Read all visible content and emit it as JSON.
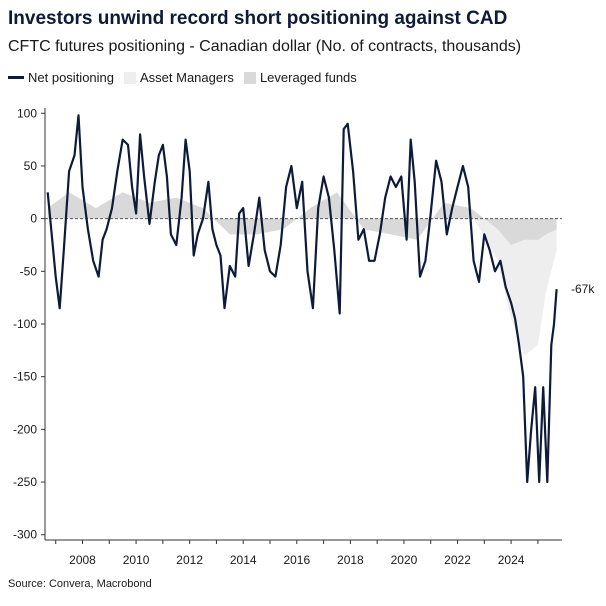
{
  "header": {
    "title": "Investors unwind record short positioning against CAD",
    "subtitle": "CFTC futures positioning - Canadian dollar (No. of contracts, thousands)"
  },
  "legend": [
    {
      "label": "Net positioning",
      "color": "#0d1b3a",
      "kind": "line"
    },
    {
      "label": "Asset Managers",
      "color": "#eeeeee",
      "kind": "area"
    },
    {
      "label": "Leveraged funds",
      "color": "#d9d9d9",
      "kind": "area"
    }
  ],
  "footer": {
    "source": "Source: Convera, Macrobond"
  },
  "chart_data": {
    "type": "line",
    "title": "Investors unwind record short positioning against CAD",
    "subtitle": "CFTC futures positioning - Canadian dollar (No. of contracts, thousands)",
    "xlabel": "",
    "ylabel": "",
    "xlim": [
      2006.6,
      2025.9
    ],
    "ylim": [
      -305,
      105
    ],
    "x_ticks": [
      2008,
      2010,
      2012,
      2014,
      2016,
      2018,
      2020,
      2022,
      2024
    ],
    "y_ticks": [
      100,
      50,
      0,
      -50,
      -100,
      -150,
      -200,
      -250,
      -300
    ],
    "zero_line": "dashed",
    "end_label": "-67k",
    "series": [
      {
        "name": "Net positioning",
        "kind": "line",
        "color": "#0d1b3a",
        "x": [
          2006.7,
          2006.85,
          2007.0,
          2007.15,
          2007.3,
          2007.5,
          2007.7,
          2007.85,
          2008.0,
          2008.2,
          2008.4,
          2008.6,
          2008.75,
          2008.9,
          2009.1,
          2009.3,
          2009.5,
          2009.7,
          2009.85,
          2010.0,
          2010.15,
          2010.3,
          2010.5,
          2010.7,
          2010.85,
          2011.0,
          2011.15,
          2011.3,
          2011.5,
          2011.7,
          2011.85,
          2012.0,
          2012.15,
          2012.3,
          2012.5,
          2012.7,
          2012.85,
          2013.0,
          2013.15,
          2013.3,
          2013.5,
          2013.7,
          2013.85,
          2014.0,
          2014.2,
          2014.4,
          2014.6,
          2014.8,
          2015.0,
          2015.2,
          2015.4,
          2015.6,
          2015.8,
          2016.0,
          2016.2,
          2016.4,
          2016.6,
          2016.8,
          2017.0,
          2017.2,
          2017.4,
          2017.6,
          2017.75,
          2017.9,
          2018.1,
          2018.3,
          2018.5,
          2018.7,
          2018.9,
          2019.1,
          2019.3,
          2019.5,
          2019.7,
          2019.9,
          2020.1,
          2020.25,
          2020.4,
          2020.6,
          2020.8,
          2021.0,
          2021.2,
          2021.4,
          2021.6,
          2021.8,
          2022.0,
          2022.2,
          2022.4,
          2022.6,
          2022.8,
          2023.0,
          2023.2,
          2023.4,
          2023.6,
          2023.8,
          2024.0,
          2024.15,
          2024.3,
          2024.45,
          2024.6,
          2024.75,
          2024.9,
          2025.05,
          2025.2,
          2025.35,
          2025.5,
          2025.6,
          2025.7
        ],
        "values": [
          25,
          -15,
          -55,
          -85,
          -30,
          45,
          60,
          98,
          30,
          -10,
          -40,
          -55,
          -20,
          -10,
          10,
          45,
          75,
          70,
          30,
          5,
          80,
          40,
          -5,
          35,
          60,
          70,
          40,
          -15,
          -25,
          20,
          75,
          45,
          -35,
          -15,
          0,
          35,
          -10,
          -25,
          -35,
          -85,
          -45,
          -55,
          5,
          10,
          -45,
          -15,
          20,
          -30,
          -50,
          -55,
          -25,
          30,
          50,
          10,
          35,
          -50,
          -85,
          10,
          40,
          20,
          -30,
          -90,
          85,
          90,
          45,
          -20,
          -10,
          -40,
          -40,
          -15,
          20,
          40,
          30,
          40,
          -20,
          75,
          35,
          -55,
          -40,
          5,
          55,
          35,
          -15,
          10,
          30,
          50,
          30,
          -40,
          -60,
          -15,
          -30,
          -50,
          -40,
          -65,
          -80,
          -95,
          -120,
          -150,
          -250,
          -200,
          -160,
          -250,
          -160,
          -250,
          -120,
          -100,
          -67
        ]
      },
      {
        "name": "Asset Managers",
        "kind": "area",
        "color": "#eeeeee",
        "x": [
          2006.7,
          2007.5,
          2008.5,
          2009.5,
          2010.5,
          2011.5,
          2012.5,
          2013.5,
          2014.5,
          2015.5,
          2016.5,
          2017.5,
          2018.5,
          2019.5,
          2020.5,
          2021.5,
          2022.5,
          2023.5,
          2024.0,
          2024.5,
          2025.0,
          2025.3,
          2025.7
        ],
        "values": [
          5,
          15,
          5,
          20,
          10,
          15,
          5,
          -10,
          -10,
          -5,
          5,
          20,
          -5,
          -10,
          -15,
          10,
          5,
          -40,
          -95,
          -130,
          -120,
          -70,
          -30
        ]
      },
      {
        "name": "Leveraged funds",
        "kind": "area",
        "color": "#d9d9d9",
        "x": [
          2006.7,
          2007.5,
          2008.5,
          2009.5,
          2010.5,
          2011.5,
          2012.5,
          2013.5,
          2014.5,
          2015.5,
          2016.5,
          2017.5,
          2018.5,
          2019.5,
          2020.5,
          2021.5,
          2022.5,
          2023.5,
          2024.0,
          2024.5,
          2025.0,
          2025.3,
          2025.7
        ],
        "values": [
          10,
          25,
          10,
          25,
          15,
          20,
          10,
          -15,
          -15,
          -10,
          10,
          25,
          -10,
          -15,
          -20,
          15,
          10,
          -10,
          -25,
          -20,
          -20,
          -15,
          -10
        ]
      }
    ]
  }
}
